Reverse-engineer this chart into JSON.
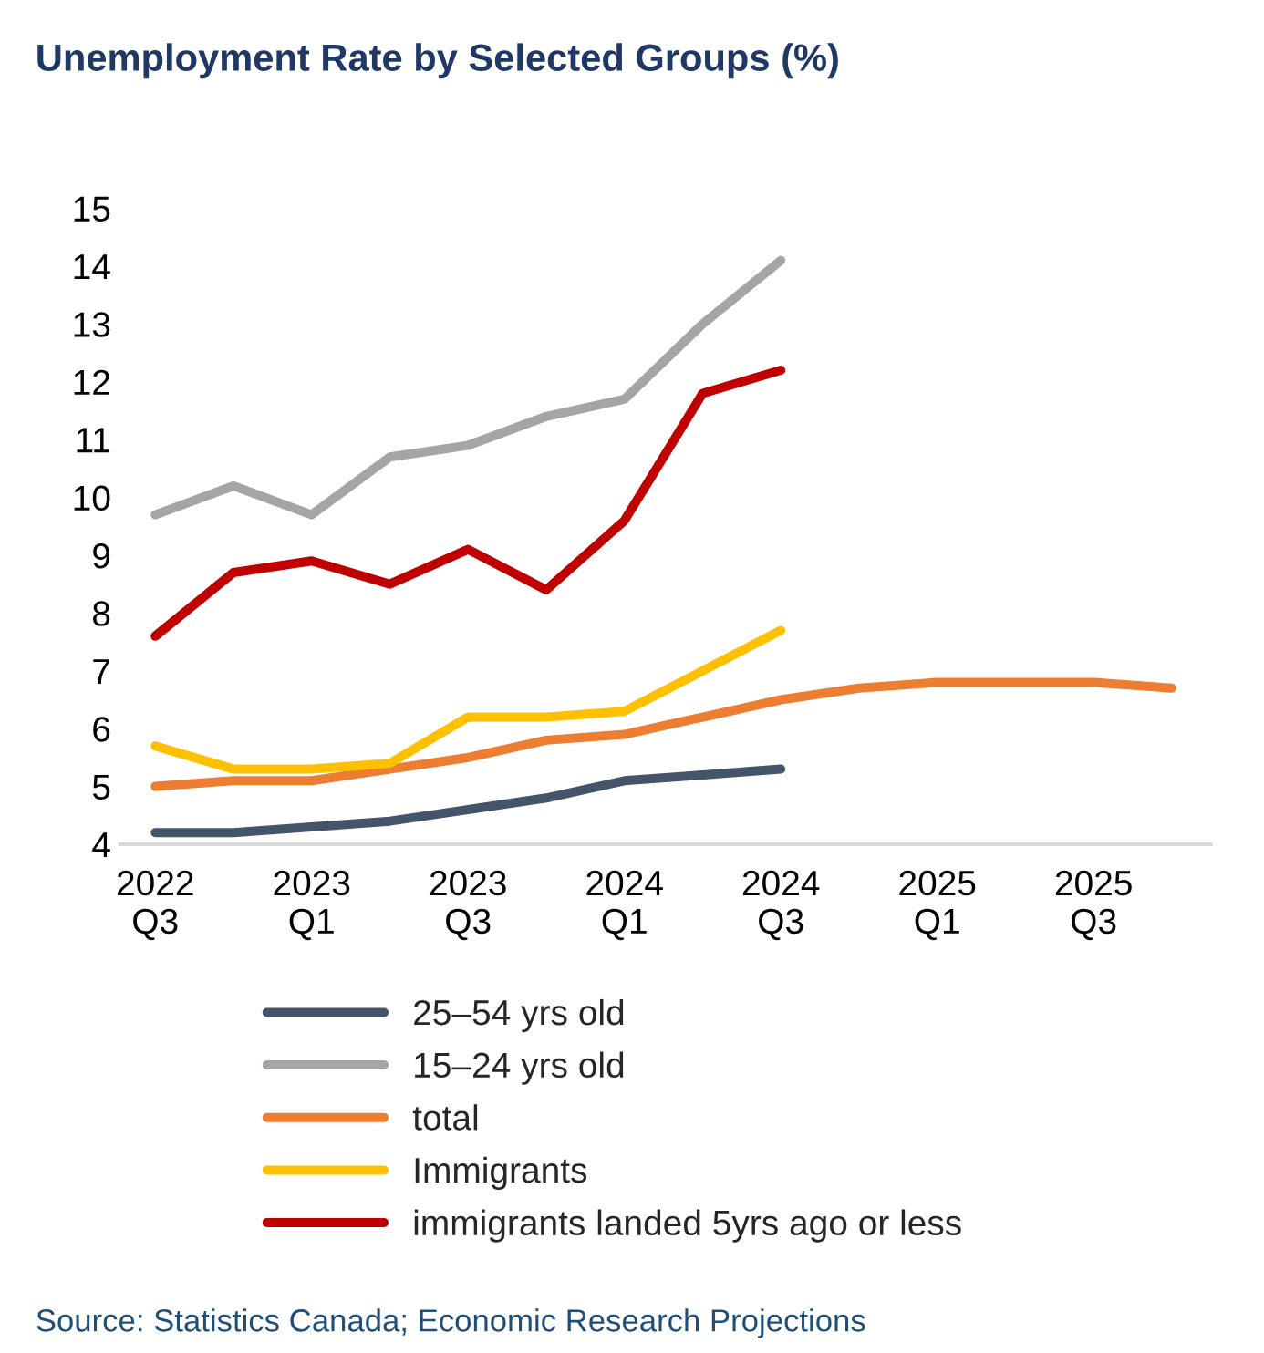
{
  "chart_data": {
    "type": "line",
    "title": "Unemployment Rate by Selected Groups (%)",
    "categories": [
      "2022\nQ3",
      null,
      "2023\nQ1",
      null,
      "2023\nQ3",
      null,
      "2024\nQ1",
      null,
      "2024\nQ3",
      null,
      "2025\nQ1",
      null,
      "2025\nQ3",
      null
    ],
    "series": [
      {
        "name": "25–54 yrs old",
        "color": "#44546a",
        "values": [
          4.2,
          4.2,
          4.3,
          4.4,
          4.6,
          4.8,
          5.1,
          5.2,
          5.3,
          null,
          null,
          null,
          null,
          null
        ]
      },
      {
        "name": "15–24 yrs old",
        "color": "#a5a5a5",
        "values": [
          9.7,
          10.2,
          9.7,
          10.7,
          10.9,
          11.4,
          11.7,
          13.0,
          14.1,
          null,
          null,
          null,
          null,
          null
        ]
      },
      {
        "name": "total",
        "color": "#ed7d31",
        "values": [
          5.0,
          5.1,
          5.1,
          5.3,
          5.5,
          5.8,
          5.9,
          6.2,
          6.5,
          6.7,
          6.8,
          6.8,
          6.8,
          6.7
        ]
      },
      {
        "name": "Immigrants",
        "color": "#ffc000",
        "values": [
          5.7,
          5.3,
          5.3,
          5.4,
          6.2,
          6.2,
          6.3,
          7.0,
          7.7,
          null,
          null,
          null,
          null,
          null
        ]
      },
      {
        "name": "immigrants landed 5yrs ago or less",
        "color": "#c00000",
        "values": [
          7.6,
          8.7,
          8.9,
          8.5,
          9.1,
          8.4,
          9.6,
          11.8,
          12.2,
          null,
          null,
          null,
          null,
          null
        ]
      }
    ],
    "ylim": [
      4,
      15
    ],
    "yticks": [
      4,
      5,
      6,
      7,
      8,
      9,
      10,
      11,
      12,
      13,
      14,
      15
    ],
    "grid": false,
    "legend": "bottom",
    "marker": "none",
    "line_style": "solid",
    "annotations": [
      "Source: Statistics Canada; Economic Research Projections"
    ]
  }
}
